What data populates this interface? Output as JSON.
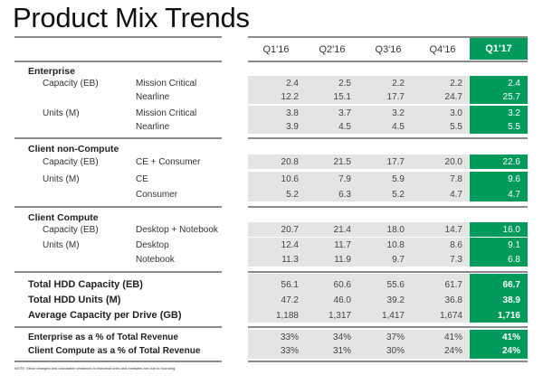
{
  "title": "Product Mix Trends",
  "columns": [
    "Q1'16",
    "Q2'16",
    "Q3'16",
    "Q4'16",
    "Q1'17"
  ],
  "highlight_column": "Q1'17",
  "colors": {
    "highlight": "#009b5b",
    "cell_bg": "#e4e4e4",
    "divider": "#8a8a8a"
  },
  "sections": [
    {
      "name": "Enterprise",
      "rows": [
        {
          "metric": "Capacity (EB)",
          "segment": "Mission Critical",
          "values": [
            "2.4",
            "2.5",
            "2.2",
            "2.2",
            "2.4"
          ]
        },
        {
          "metric": "",
          "segment": "Nearline",
          "values": [
            "12.2",
            "15.1",
            "17.7",
            "24.7",
            "25.7"
          ]
        },
        {
          "metric": "Units (M)",
          "segment": "Mission Critical",
          "values": [
            "3.8",
            "3.7",
            "3.2",
            "3.0",
            "3.2"
          ]
        },
        {
          "metric": "",
          "segment": "Nearline",
          "values": [
            "3.9",
            "4.5",
            "4.5",
            "5.5",
            "5.5"
          ]
        }
      ]
    },
    {
      "name": "Client non-Compute",
      "rows": [
        {
          "metric": "Capacity (EB)",
          "segment": "CE + Consumer",
          "values": [
            "20.8",
            "21.5",
            "17.7",
            "20.0",
            "22.6"
          ]
        },
        {
          "metric": "Units (M)",
          "segment": "CE",
          "values": [
            "10.6",
            "7.9",
            "5.9",
            "7.8",
            "9.6"
          ]
        },
        {
          "metric": "",
          "segment": "Consumer",
          "values": [
            "5.2",
            "6.3",
            "5.2",
            "4.7",
            "4.7"
          ]
        }
      ]
    },
    {
      "name": "Client Compute",
      "rows": [
        {
          "metric": "Capacity (EB)",
          "segment": "Desktop + Notebook",
          "values": [
            "20.7",
            "21.4",
            "18.0",
            "14.7",
            "16.0"
          ]
        },
        {
          "metric": "Units (M)",
          "segment": "Desktop",
          "values": [
            "12.4",
            "11.7",
            "10.8",
            "8.6",
            "9.1"
          ]
        },
        {
          "metric": "",
          "segment": "Notebook",
          "values": [
            "11.3",
            "11.9",
            "9.7",
            "7.3",
            "6.8"
          ]
        }
      ]
    }
  ],
  "totals": [
    {
      "label": "Total  HDD Capacity (EB)",
      "values": [
        "56.1",
        "60.6",
        "55.6",
        "61.7",
        "66.7"
      ]
    },
    {
      "label": "Total HDD Units (M)",
      "values": [
        "47.2",
        "46.0",
        "39.2",
        "36.8",
        "38.9"
      ]
    },
    {
      "label": "Average Capacity per Drive (GB)",
      "values": [
        "1,188",
        "1,317",
        "1,417",
        "1,674",
        "1,716"
      ]
    }
  ],
  "revenue_share": [
    {
      "label": "Enterprise as a % of Total Revenue",
      "values": [
        "33%",
        "34%",
        "37%",
        "41%",
        "41%"
      ]
    },
    {
      "label": "Client Compute as a % of Total Revenue",
      "values": [
        "33%",
        "31%",
        "30%",
        "24%",
        "24%"
      ]
    }
  ],
  "note": "NOTE: Minor changes and calculation variances to historical units and exabytes are due to rounding."
}
